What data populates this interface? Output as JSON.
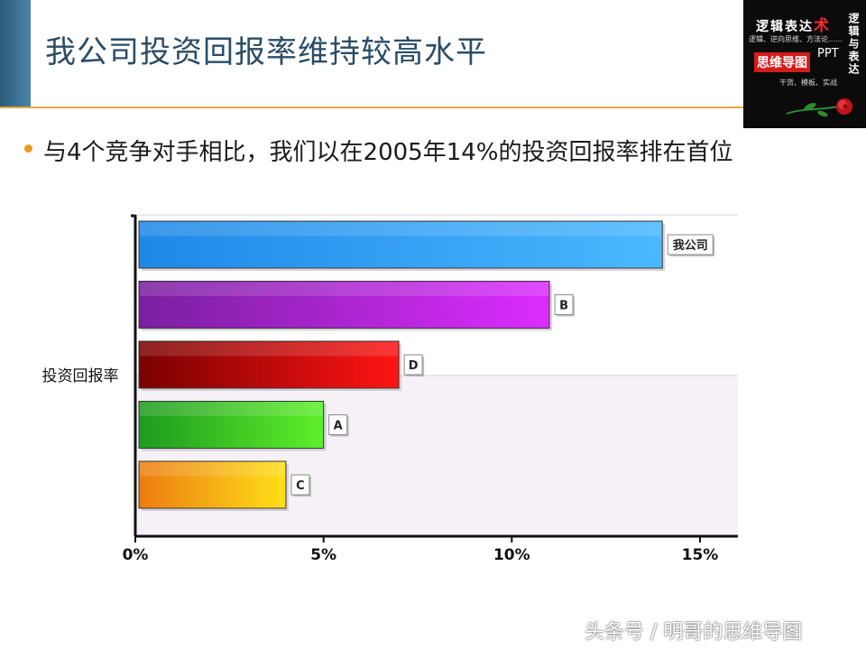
{
  "header": {
    "title": "我公司投资回报率维持较高水平"
  },
  "logo": {
    "line1": "逻辑表达",
    "line1_accent": "术",
    "line2": "逻辑、逆向思维、方法论……",
    "line3": "思维导图",
    "line4": "PPT",
    "line5": "干货、模板、实战",
    "vertical": "逻辑与表达"
  },
  "headline": "与4个竞争对手相比，我们以在2005年14%的投资回报率排在首位",
  "chart_data": {
    "type": "bar",
    "orientation": "horizontal",
    "ylabel": "投资回报率",
    "categories": [
      "我公司",
      "B",
      "D",
      "A",
      "C"
    ],
    "values": [
      14,
      11,
      7,
      5,
      4
    ],
    "xlim": [
      0,
      16
    ],
    "xticks": [
      0,
      5,
      10,
      15
    ],
    "xtick_labels": [
      "0%",
      "5%",
      "10%",
      "15%"
    ],
    "colors": [
      [
        "#1e88e8",
        "#4bb8ff"
      ],
      [
        "#7a1fa0",
        "#dc2cff"
      ],
      [
        "#7a0000",
        "#ff1414"
      ],
      [
        "#1e9a1e",
        "#5ef02a"
      ],
      [
        "#ec7c10",
        "#ffe018"
      ]
    ]
  },
  "watermark": "头条号 / 明哥的思维导图"
}
